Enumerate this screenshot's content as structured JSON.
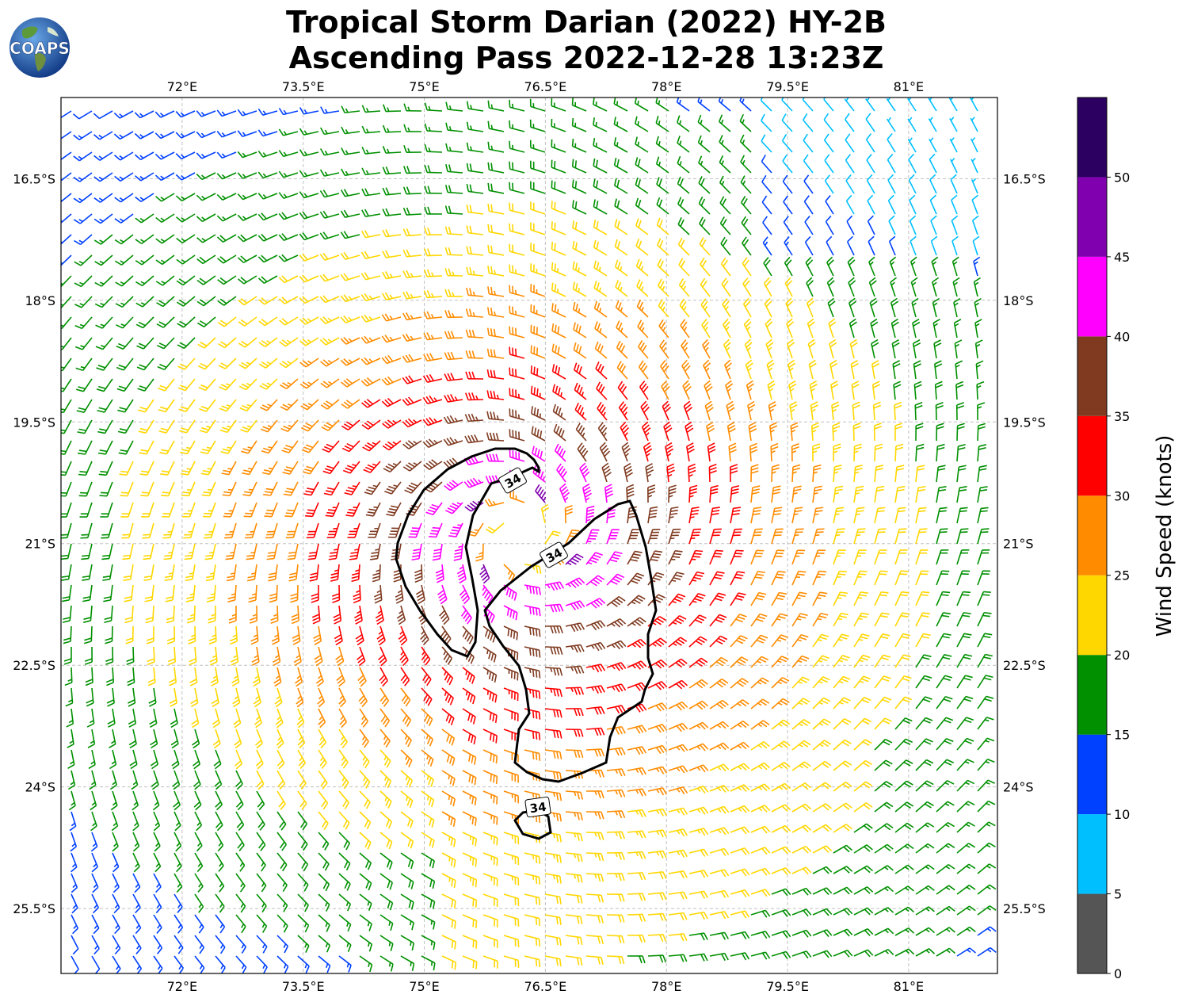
{
  "header": {
    "title_line1": "Tropical Storm Darian (2022) HY-2B",
    "title_line2": "Ascending Pass 2022-12-28 13:23Z",
    "logo_text": "COAPS"
  },
  "map": {
    "lon_ticks": [
      "72°E",
      "73.5°E",
      "75°E",
      "76.5°E",
      "78°E",
      "79.5°E",
      "81°E"
    ],
    "lat_ticks": [
      "16.5°S",
      "18°S",
      "19.5°S",
      "21°S",
      "22.5°S",
      "24°S",
      "25.5°S"
    ],
    "lon_range": [
      70.5,
      82.1
    ],
    "lat_range": [
      -26.3,
      -15.5
    ],
    "gridlines": "dashed",
    "storm_center": {
      "lon": 76.2,
      "lat": -20.9
    },
    "contour_value_labels": [
      "34",
      "34",
      "34"
    ]
  },
  "colorbar": {
    "label": "Wind Speed (knots)",
    "tick_labels": [
      "0",
      "5",
      "10",
      "15",
      "20",
      "25",
      "30",
      "35",
      "40",
      "45",
      "50"
    ],
    "bins": [
      {
        "min": 0,
        "max": 5,
        "color": "#555555"
      },
      {
        "min": 5,
        "max": 10,
        "color": "#00bfff"
      },
      {
        "min": 10,
        "max": 15,
        "color": "#0040ff"
      },
      {
        "min": 15,
        "max": 20,
        "color": "#009000"
      },
      {
        "min": 20,
        "max": 25,
        "color": "#ffd700"
      },
      {
        "min": 25,
        "max": 30,
        "color": "#ff8c00"
      },
      {
        "min": 30,
        "max": 35,
        "color": "#ff0000"
      },
      {
        "min": 35,
        "max": 40,
        "color": "#7f3a20"
      },
      {
        "min": 40,
        "max": 45,
        "color": "#ff00ff"
      },
      {
        "min": 45,
        "max": 50,
        "color": "#8000b0"
      },
      {
        "min": 50,
        "max": 55,
        "color": "#2b0060"
      }
    ]
  }
}
